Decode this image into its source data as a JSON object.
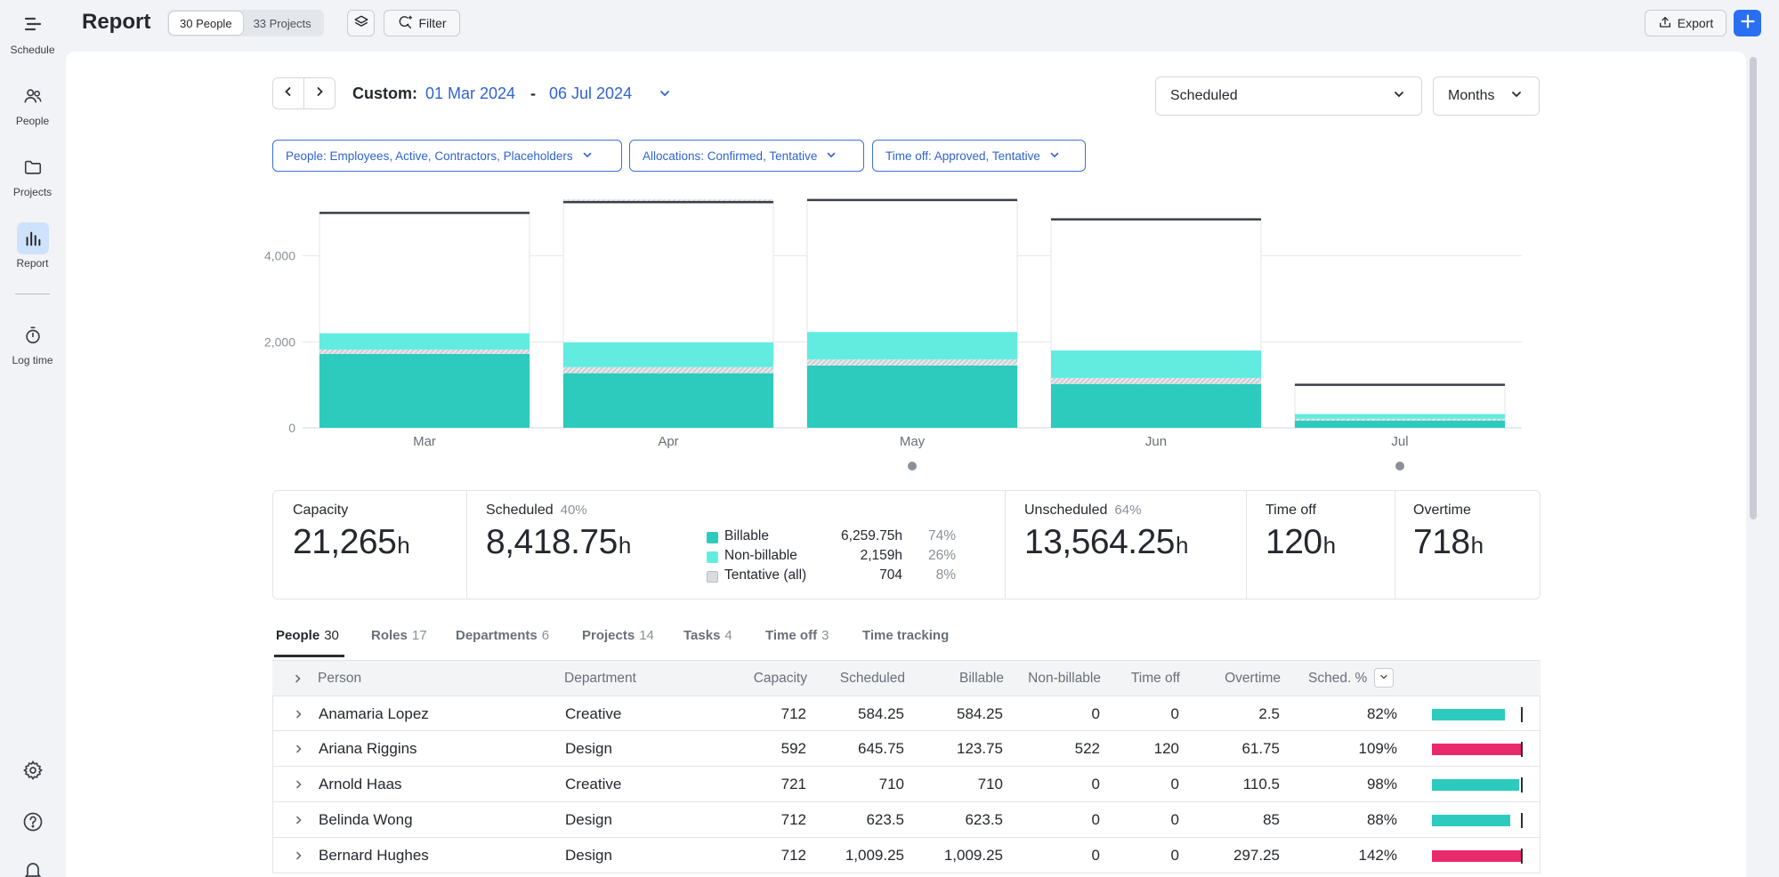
{
  "sidebar": {
    "items": [
      {
        "label": "Schedule",
        "icon": "schedule-icon"
      },
      {
        "label": "People",
        "icon": "people-icon"
      },
      {
        "label": "Projects",
        "icon": "folder-icon"
      },
      {
        "label": "Report",
        "icon": "bar-chart-icon",
        "active": true
      },
      {
        "label": "Log time",
        "icon": "stopwatch-icon"
      }
    ]
  },
  "header": {
    "title": "Report",
    "people_toggle": "30 People",
    "projects_toggle": "33 Projects",
    "filter_label": "Filter",
    "export_label": "Export"
  },
  "range": {
    "prefix": "Custom:",
    "start": "01 Mar 2024",
    "separator": "-",
    "end": "06 Jul 2024"
  },
  "selectors": {
    "metric": "Scheduled",
    "period": "Months"
  },
  "filters": {
    "people": "People: Employees, Active, Contractors, Placeholders",
    "allocations": "Allocations: Confirmed, Tentative",
    "timeoff": "Time off: Approved, Tentative"
  },
  "chart_data": {
    "type": "bar",
    "categories": [
      "Mar",
      "Apr",
      "May",
      "Jun",
      "Jul"
    ],
    "series": [
      {
        "name": "Billable",
        "values": [
          1720,
          1270,
          1450,
          1020,
          170
        ]
      },
      {
        "name": "Tentative (all)",
        "values": [
          100,
          140,
          140,
          140,
          40
        ]
      },
      {
        "name": "Non-billable",
        "values": [
          380,
          580,
          640,
          640,
          110
        ]
      }
    ],
    "capacity": [
      5000,
      5250,
      5300,
      4850,
      1000
    ],
    "tentative_capacity": [
      0,
      60,
      0,
      0,
      0
    ],
    "yticks": [
      "0",
      "2,000",
      "4,000"
    ],
    "ylim": [
      0,
      5400
    ],
    "grid": true,
    "markers": [
      "May",
      "Jul"
    ],
    "colors": {
      "billable": "#2ccbbe",
      "nonbillable": "#62ece0",
      "tentative": "#d9dcdf",
      "capacity": "#3a3f47"
    }
  },
  "stats": {
    "capacity": {
      "label": "Capacity",
      "value": "21,265",
      "unit": "h"
    },
    "scheduled": {
      "label": "Scheduled",
      "pct": "40%",
      "value": "8,418.75",
      "unit": "h"
    },
    "legend": [
      {
        "name": "Billable",
        "value": "6,259.75h",
        "pct": "74%",
        "color": "#2ccbbe"
      },
      {
        "name": "Non-billable",
        "value": "2,159h",
        "pct": "26%",
        "color": "#62ece0"
      },
      {
        "name": "Tentative (all)",
        "value": "704",
        "pct": "8%",
        "color": "#d9dcdf"
      }
    ],
    "unscheduled": {
      "label": "Unscheduled",
      "pct": "64%",
      "value": "13,564.25",
      "unit": "h"
    },
    "timeoff": {
      "label": "Time off",
      "value": "120",
      "unit": "h"
    },
    "overtime": {
      "label": "Overtime",
      "value": "718",
      "unit": "h"
    }
  },
  "tabs": [
    {
      "label": "People",
      "count": "30",
      "active": true
    },
    {
      "label": "Roles",
      "count": "17"
    },
    {
      "label": "Departments",
      "count": "6"
    },
    {
      "label": "Projects",
      "count": "14"
    },
    {
      "label": "Tasks",
      "count": "4"
    },
    {
      "label": "Time off",
      "count": "3"
    },
    {
      "label": "Time tracking",
      "count": ""
    }
  ],
  "table": {
    "headers": {
      "person": "Person",
      "department": "Department",
      "capacity": "Capacity",
      "scheduled": "Scheduled",
      "billable": "Billable",
      "nonbillable": "Non-billable",
      "timeoff": "Time off",
      "overtime": "Overtime",
      "sched_pct": "Sched. %"
    },
    "rows": [
      {
        "person": "Anamaria Lopez",
        "department": "Creative",
        "capacity": "712",
        "scheduled": "584.25",
        "billable": "584.25",
        "nonbillable": "0",
        "timeoff": "0",
        "overtime": "2.5",
        "sched_pct": "82%",
        "fill": 0.82,
        "over": false
      },
      {
        "person": "Ariana Riggins",
        "department": "Design",
        "capacity": "592",
        "scheduled": "645.75",
        "billable": "123.75",
        "nonbillable": "522",
        "timeoff": "120",
        "overtime": "61.75",
        "sched_pct": "109%",
        "fill": 1.0,
        "over": true
      },
      {
        "person": "Arnold Haas",
        "department": "Creative",
        "capacity": "721",
        "scheduled": "710",
        "billable": "710",
        "nonbillable": "0",
        "timeoff": "0",
        "overtime": "110.5",
        "sched_pct": "98%",
        "fill": 0.98,
        "over": false
      },
      {
        "person": "Belinda Wong",
        "department": "Design",
        "capacity": "712",
        "scheduled": "623.5",
        "billable": "623.5",
        "nonbillable": "0",
        "timeoff": "0",
        "overtime": "85",
        "sched_pct": "88%",
        "fill": 0.88,
        "over": false
      },
      {
        "person": "Bernard Hughes",
        "department": "Design",
        "capacity": "712",
        "scheduled": "1,009.25",
        "billable": "1,009.25",
        "nonbillable": "0",
        "timeoff": "0",
        "overtime": "297.25",
        "sched_pct": "142%",
        "fill": 1.0,
        "over": true
      }
    ]
  }
}
